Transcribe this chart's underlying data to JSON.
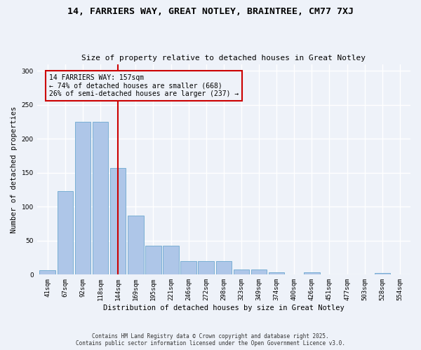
{
  "title_line1": "14, FARRIERS WAY, GREAT NOTLEY, BRAINTREE, CM77 7XJ",
  "title_line2": "Size of property relative to detached houses in Great Notley",
  "xlabel": "Distribution of detached houses by size in Great Notley",
  "ylabel": "Number of detached properties",
  "categories": [
    "41sqm",
    "67sqm",
    "92sqm",
    "118sqm",
    "144sqm",
    "169sqm",
    "195sqm",
    "221sqm",
    "246sqm",
    "272sqm",
    "298sqm",
    "323sqm",
    "349sqm",
    "374sqm",
    "400sqm",
    "426sqm",
    "451sqm",
    "477sqm",
    "503sqm",
    "528sqm",
    "554sqm"
  ],
  "values": [
    7,
    123,
    225,
    225,
    157,
    87,
    43,
    43,
    20,
    20,
    20,
    8,
    8,
    3,
    0,
    3,
    0,
    0,
    0,
    2,
    0
  ],
  "bar_color": "#aec6e8",
  "bar_edge_color": "#7aafd4",
  "vline_x": 4.0,
  "vline_color": "#cc0000",
  "ann_line1": "14 FARRIERS WAY: 157sqm",
  "ann_line2": "← 74% of detached houses are smaller (668)",
  "ann_line3": "26% of semi-detached houses are larger (237) →",
  "ylim": [
    0,
    310
  ],
  "yticks": [
    0,
    50,
    100,
    150,
    200,
    250,
    300
  ],
  "footer_line1": "Contains HM Land Registry data © Crown copyright and database right 2025.",
  "footer_line2": "Contains public sector information licensed under the Open Government Licence v3.0.",
  "background_color": "#eef2f9",
  "grid_color": "#ffffff"
}
